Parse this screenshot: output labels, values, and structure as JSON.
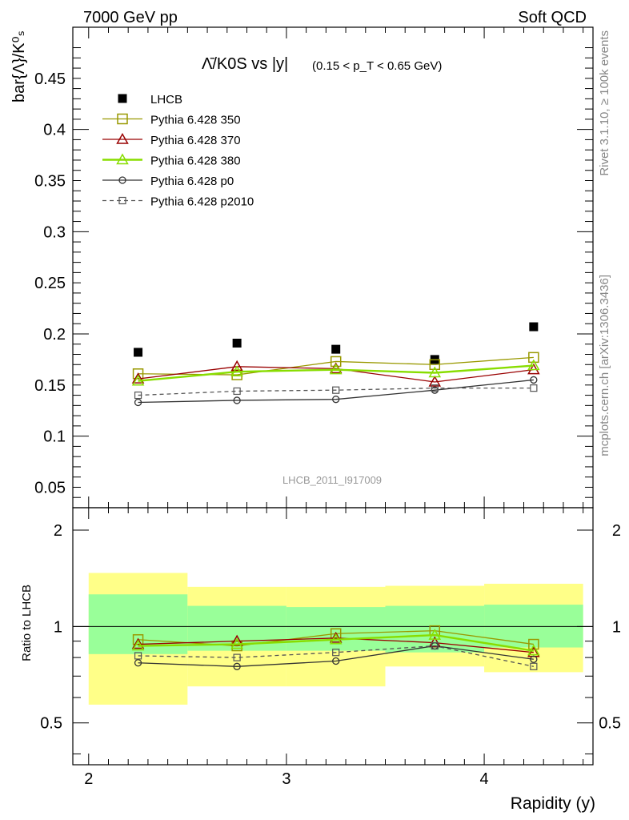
{
  "header": {
    "left": "7000 GeV pp",
    "right": "Soft QCD"
  },
  "side_labels": {
    "rivet": "Rivet 3.1.10, ≥ 100k events",
    "mcplots": "mcplots.cern.ch [arXiv:1306.3436]"
  },
  "watermark": "LHCB_2011_I917009",
  "chart_data": [
    {
      "type": "scatter",
      "panel": "main",
      "title": "Λ̄/K0S vs |y|",
      "title_range": "(0.15 < p_T < 0.65 GeV)",
      "ylabel": "bar{Λ}/K⁰ₛ",
      "xlim": [
        1.92,
        4.55
      ],
      "ylim": [
        0.03,
        0.5
      ],
      "yticks": [
        "0.05",
        "0.1",
        "0.15",
        "0.2",
        "0.25",
        "0.3",
        "0.35",
        "0.4",
        "0.45"
      ],
      "x": [
        2.25,
        2.75,
        3.25,
        3.75,
        4.25
      ],
      "series": [
        {
          "name": "LHCB",
          "color": "#000000",
          "marker": "filled-square",
          "values": [
            0.182,
            0.191,
            0.185,
            0.175,
            0.207
          ]
        },
        {
          "name": "Pythia 6.428 350",
          "color": "#999900",
          "marker": "open-square",
          "values": [
            0.161,
            0.16,
            0.173,
            0.17,
            0.177
          ]
        },
        {
          "name": "Pythia 6.428 370",
          "color": "#990000",
          "marker": "open-triangle",
          "values": [
            0.156,
            0.168,
            0.166,
            0.153,
            0.165
          ]
        },
        {
          "name": "Pythia 6.428 380",
          "color": "#88dd00",
          "marker": "open-triangle",
          "values": [
            0.154,
            0.163,
            0.165,
            0.162,
            0.169
          ]
        },
        {
          "name": "Pythia 6.428 p0",
          "color": "#333333",
          "marker": "open-circle",
          "values": [
            0.133,
            0.135,
            0.136,
            0.145,
            0.155
          ]
        },
        {
          "name": "Pythia 6.428 p2010",
          "color": "#555555",
          "marker": "open-square-small",
          "dashed": true,
          "values": [
            0.14,
            0.144,
            0.145,
            0.147,
            0.147
          ]
        }
      ]
    },
    {
      "type": "line",
      "panel": "ratio",
      "ylabel": "Ratio to LHCB",
      "xlabel": "Rapidity (y)",
      "xlim": [
        1.92,
        4.55
      ],
      "ylim": [
        0.37,
        2.35
      ],
      "yticks": [
        "0.5",
        "1",
        "2"
      ],
      "xticks": [
        "2",
        "3",
        "4"
      ],
      "bins": [
        {
          "lo": 2.0,
          "hi": 2.5,
          "stat": [
            0.82,
            1.26
          ],
          "total": [
            0.57,
            1.47
          ]
        },
        {
          "lo": 2.5,
          "hi": 3.0,
          "stat": [
            0.84,
            1.16
          ],
          "total": [
            0.65,
            1.33
          ]
        },
        {
          "lo": 3.0,
          "hi": 3.5,
          "stat": [
            0.84,
            1.15
          ],
          "total": [
            0.65,
            1.33
          ]
        },
        {
          "lo": 3.5,
          "hi": 4.0,
          "stat": [
            0.83,
            1.16
          ],
          "total": [
            0.75,
            1.34
          ]
        },
        {
          "lo": 4.0,
          "hi": 4.5,
          "stat": [
            0.86,
            1.17
          ],
          "total": [
            0.72,
            1.36
          ]
        }
      ],
      "x": [
        2.25,
        2.75,
        3.25,
        3.75,
        4.25
      ],
      "series": [
        {
          "name": "Pythia 6.428 350",
          "color": "#999900",
          "marker": "open-square",
          "values": [
            0.91,
            0.87,
            0.95,
            0.97,
            0.88
          ]
        },
        {
          "name": "Pythia 6.428 370",
          "color": "#990000",
          "marker": "open-triangle",
          "values": [
            0.88,
            0.9,
            0.92,
            0.89,
            0.83
          ]
        },
        {
          "name": "Pythia 6.428 380",
          "color": "#88dd00",
          "marker": "open-triangle",
          "values": [
            0.87,
            0.88,
            0.91,
            0.94,
            0.84
          ]
        },
        {
          "name": "Pythia 6.428 p0",
          "color": "#333333",
          "marker": "open-circle",
          "values": [
            0.77,
            0.75,
            0.78,
            0.87,
            0.79
          ]
        },
        {
          "name": "Pythia 6.428 p2010",
          "color": "#555555",
          "marker": "open-square-small",
          "dashed": true,
          "values": [
            0.81,
            0.8,
            0.83,
            0.87,
            0.75
          ]
        }
      ]
    }
  ]
}
